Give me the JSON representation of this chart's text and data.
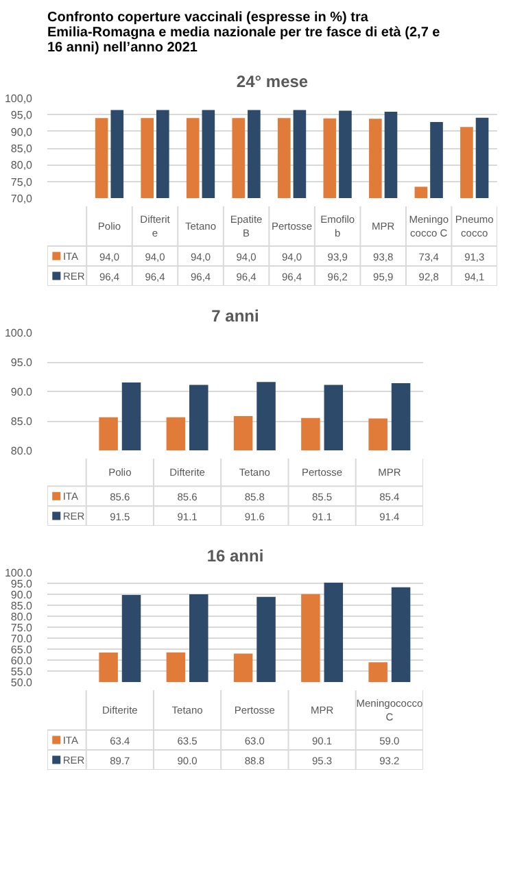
{
  "chart_data": [
    {
      "type": "bar",
      "title": "Confronto coperture vaccinali (espresse in %) tra Emilia-Romagna e media nazionale per tre fasce di età  (2,7 e 16 anni) nell’anno 2021",
      "subtitle": "24° mese",
      "categories": [
        "Polio",
        "Difterite",
        "Tetano",
        "Epatite B",
        "Pertosse",
        "Emofilo b",
        "MPR",
        "Meningo cocco C",
        "Pneumo cocco"
      ],
      "series": [
        {
          "name": "ITA",
          "color": "#e07b39",
          "values": [
            94.0,
            94.0,
            94.0,
            94.0,
            94.0,
            93.9,
            93.8,
            73.4,
            91.3
          ],
          "value_labels": [
            "94,0",
            "94,0",
            "94,0",
            "94,0",
            "94,0",
            "93,9",
            "93,8",
            "73,4",
            "91,3"
          ]
        },
        {
          "name": "RER",
          "color": "#2e4a6b",
          "values": [
            96.4,
            96.4,
            96.4,
            96.4,
            96.4,
            96.2,
            95.9,
            92.8,
            94.1
          ],
          "value_labels": [
            "96,4",
            "96,4",
            "96,4",
            "96,4",
            "96,4",
            "96,2",
            "95,9",
            "92,8",
            "94,1"
          ]
        }
      ],
      "ylim": [
        70,
        100
      ],
      "yticks": [
        {
          "value": 70,
          "label": "70,0"
        },
        {
          "value": 75,
          "label": "75,0"
        },
        {
          "value": 80,
          "label": "80,0"
        },
        {
          "value": 85,
          "label": "85,0"
        },
        {
          "value": 90,
          "label": "90,0"
        },
        {
          "value": 95,
          "label": "95,0"
        },
        {
          "value": 100,
          "label": "100,0"
        }
      ],
      "grid": "y",
      "legend": "bottom"
    },
    {
      "type": "bar",
      "title": "7 anni",
      "categories": [
        "Polio",
        "Difterite",
        "Tetano",
        "Pertosse",
        "MPR"
      ],
      "series": [
        {
          "name": "ITA",
          "color": "#e07b39",
          "values": [
            85.6,
            85.6,
            85.8,
            85.5,
            85.4
          ],
          "value_labels": [
            "85.6",
            "85.6",
            "85.8",
            "85.5",
            "85.4"
          ]
        },
        {
          "name": "RER",
          "color": "#2e4a6b",
          "values": [
            91.5,
            91.1,
            91.6,
            91.1,
            91.4
          ],
          "value_labels": [
            "91.5",
            "91.1",
            "91.6",
            "91.1",
            "91.4"
          ]
        }
      ],
      "ylim": [
        80,
        100
      ],
      "yticks": [
        {
          "value": 80,
          "label": "80.0"
        },
        {
          "value": 85,
          "label": "85.0"
        },
        {
          "value": 90,
          "label": "90.0"
        },
        {
          "value": 95,
          "label": "95.0"
        },
        {
          "value": 100,
          "label": "100.0"
        }
      ],
      "grid": "y",
      "legend": "bottom"
    },
    {
      "type": "bar",
      "title": "16 anni",
      "categories": [
        "Difterite",
        "Tetano",
        "Pertosse",
        "MPR",
        "Meningococco C"
      ],
      "series": [
        {
          "name": "ITA",
          "color": "#e07b39",
          "values": [
            63.4,
            63.5,
            63.0,
            90.1,
            59.0
          ],
          "value_labels": [
            "63.4",
            "63.5",
            "63.0",
            "90.1",
            "59.0"
          ]
        },
        {
          "name": "RER",
          "color": "#2e4a6b",
          "values": [
            89.7,
            90.0,
            88.8,
            95.3,
            93.2
          ],
          "value_labels": [
            "89.7",
            "90.0",
            "88.8",
            "95.3",
            "93.2"
          ]
        }
      ],
      "ylim": [
        50,
        100
      ],
      "yticks": [
        {
          "value": 50,
          "label": "50.0"
        },
        {
          "value": 55,
          "label": "55.0"
        },
        {
          "value": 60,
          "label": "60.0"
        },
        {
          "value": 65,
          "label": "65.0"
        },
        {
          "value": 70,
          "label": "70.0"
        },
        {
          "value": 75,
          "label": "75.0"
        },
        {
          "value": 80,
          "label": "80.0"
        },
        {
          "value": 85,
          "label": "85.0"
        },
        {
          "value": 90,
          "label": "90.0"
        },
        {
          "value": 95,
          "label": "95.0"
        },
        {
          "value": 100,
          "label": "100.0"
        }
      ],
      "grid": "y",
      "legend": "bottom"
    }
  ]
}
